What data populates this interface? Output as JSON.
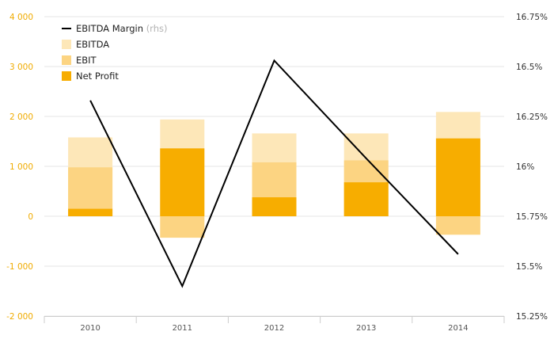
{
  "chart_data": {
    "type": "bar",
    "categories": [
      "2010",
      "2011",
      "2012",
      "2013",
      "2014"
    ],
    "stacking": "overlapping",
    "series": [
      {
        "name": "EBITDA",
        "axis": "left",
        "color": "#fde7b8",
        "values": [
          1580,
          1940,
          1660,
          1660,
          2090
        ]
      },
      {
        "name": "EBIT",
        "axis": "left",
        "color": "#fcd482",
        "values": [
          980,
          -430,
          1080,
          1120,
          -370
        ]
      },
      {
        "name": "Net Profit",
        "axis": "left",
        "color": "#f7ad00",
        "values": [
          150,
          1360,
          380,
          680,
          1560
        ]
      }
    ],
    "line_series": {
      "name": "EBITDA Margin",
      "suffix": "(rhs)",
      "axis": "right",
      "color": "#000000",
      "values": [
        16.33,
        15.4,
        16.53,
        16.04,
        15.56
      ]
    },
    "left_axis": {
      "min": -2000,
      "max": 4000,
      "ticks": [
        -2000,
        -1000,
        0,
        1000,
        2000,
        3000,
        4000
      ],
      "tick_labels": [
        "-2 000",
        "-1 000",
        "0",
        "1 000",
        "2 000",
        "3 000",
        "4 000"
      ],
      "color": "#f0ab00"
    },
    "right_axis": {
      "min": 15.25,
      "max": 16.75,
      "ticks": [
        15.25,
        15.5,
        15.75,
        16,
        16.25,
        16.5,
        16.75
      ],
      "tick_labels": [
        "15.25%",
        "15.5%",
        "15.75%",
        "16%",
        "16.25%",
        "16.5%",
        "16.75%"
      ]
    },
    "grid": true,
    "legend": "top-left"
  }
}
